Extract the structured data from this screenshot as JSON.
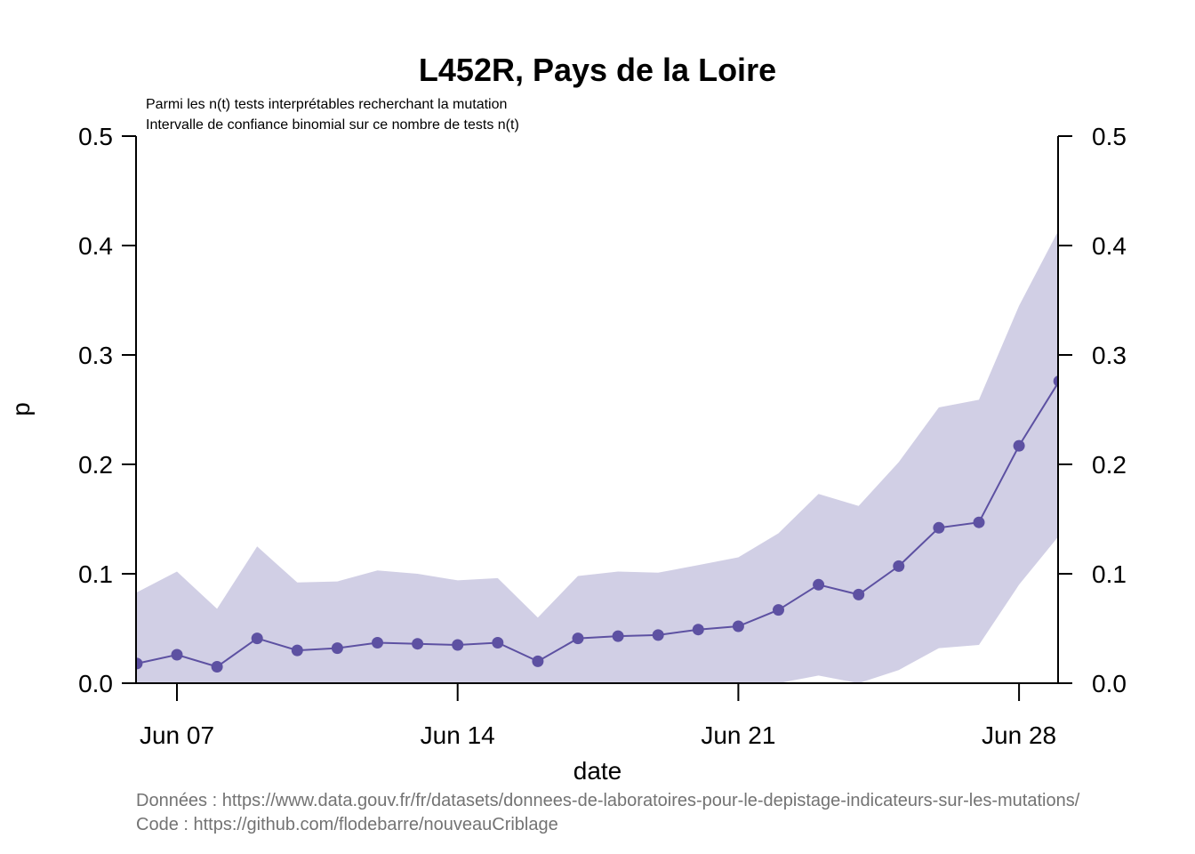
{
  "chart_data": {
    "type": "line",
    "title": "L452R, Pays de la Loire",
    "subtitle_lines": [
      "Parmi les n(t) tests interprétables recherchant la mutation",
      "Intervalle de confiance binomial sur ce nombre de tests n(t)"
    ],
    "xlabel": "date",
    "ylabel": "p",
    "ylim": [
      0,
      0.5
    ],
    "yticks": [
      "0.0",
      "0.1",
      "0.2",
      "0.3",
      "0.4",
      "0.5"
    ],
    "xtick_labels": [
      "Jun 07",
      "Jun 14",
      "Jun 21",
      "Jun 28"
    ],
    "xtick_dates": [
      "2021-06-07",
      "2021-06-14",
      "2021-06-21",
      "2021-06-28"
    ],
    "x": [
      "2021-06-06",
      "2021-06-07",
      "2021-06-08",
      "2021-06-09",
      "2021-06-10",
      "2021-06-11",
      "2021-06-12",
      "2021-06-13",
      "2021-06-14",
      "2021-06-15",
      "2021-06-16",
      "2021-06-17",
      "2021-06-18",
      "2021-06-19",
      "2021-06-20",
      "2021-06-21",
      "2021-06-22",
      "2021-06-23",
      "2021-06-24",
      "2021-06-25",
      "2021-06-26",
      "2021-06-27",
      "2021-06-28",
      "2021-06-29"
    ],
    "series": [
      {
        "values": [
          0.018,
          0.026,
          0.015,
          0.041,
          0.03,
          0.032,
          0.037,
          0.036,
          0.035,
          0.037,
          0.02,
          0.041,
          0.043,
          0.044,
          0.049,
          0.052,
          0.067,
          0.09,
          0.081,
          0.107,
          0.142,
          0.147,
          0.217,
          0.276
        ],
        "ci_low": [
          0.0,
          0.0,
          0.0,
          0.0,
          0.0,
          0.0,
          0.0,
          0.0,
          0.0,
          0.0,
          0.0,
          0.0,
          0.0,
          0.0,
          0.0,
          0.0,
          0.0,
          0.007,
          0.0,
          0.012,
          0.032,
          0.035,
          0.09,
          0.135
        ],
        "ci_high": [
          0.083,
          0.102,
          0.068,
          0.125,
          0.092,
          0.093,
          0.103,
          0.1,
          0.094,
          0.096,
          0.06,
          0.098,
          0.102,
          0.101,
          0.108,
          0.115,
          0.137,
          0.173,
          0.162,
          0.202,
          0.252,
          0.259,
          0.345,
          0.415
        ]
      }
    ],
    "colors": {
      "line": "#5d51a2",
      "band": "#d1cfe5",
      "axis": "#000000"
    },
    "grid": false,
    "legend": "none"
  },
  "source_lines": [
    "Données : https://www.data.gouv.fr/fr/datasets/donnees-de-laboratoires-pour-le-depistage-indicateurs-sur-les-mutations/",
    "Code : https://github.com/flodebarre/nouveauCriblage"
  ]
}
